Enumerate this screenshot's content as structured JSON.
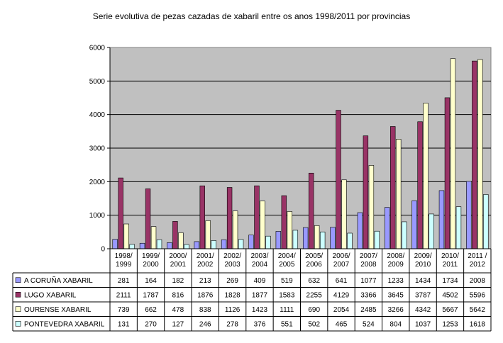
{
  "chart_data": {
    "type": "bar",
    "title": "Serie evolutiva de pezas cazadas de xabaril entre os anos 1998/2011 por provincias",
    "xlabel": "",
    "ylabel": "",
    "ylim": [
      0,
      6000
    ],
    "yticks": [
      0,
      1000,
      2000,
      3000,
      4000,
      5000,
      6000
    ],
    "grid": true,
    "legend": "table-bottom",
    "categories": [
      [
        "1998/",
        "1999"
      ],
      [
        "1999/",
        "2000"
      ],
      [
        "2000/",
        "2001"
      ],
      [
        "2001/",
        "2002"
      ],
      [
        "2002/",
        "2003"
      ],
      [
        "2003/",
        "2004"
      ],
      [
        "2004/",
        "2005"
      ],
      [
        "2005/",
        "2006"
      ],
      [
        "2006/",
        "2007"
      ],
      [
        "2007/",
        "2008"
      ],
      [
        "2008/",
        "2009"
      ],
      [
        "2009/",
        "2010"
      ],
      [
        "2010/",
        "2011"
      ],
      [
        "2011 /",
        "2012"
      ]
    ],
    "series": [
      {
        "name": "A CORUÑA XABARIL",
        "color": "#9999ff",
        "values": [
          281,
          164,
          182,
          213,
          269,
          409,
          519,
          632,
          641,
          1077,
          1233,
          1434,
          1734,
          2008
        ]
      },
      {
        "name": "LUGO XABARIL",
        "color": "#993366",
        "values": [
          2111,
          1787,
          816,
          1876,
          1828,
          1877,
          1583,
          2255,
          4129,
          3366,
          3645,
          3787,
          4502,
          5596
        ]
      },
      {
        "name": "OURENSE XABARIL",
        "color": "#ffffcc",
        "values": [
          739,
          662,
          478,
          838,
          1126,
          1423,
          1111,
          690,
          2054,
          2485,
          3266,
          4342,
          5667,
          5642
        ]
      },
      {
        "name": "PONTEVEDRA XABARIL",
        "color": "#ccffff",
        "values": [
          131,
          270,
          127,
          246,
          278,
          376,
          551,
          502,
          465,
          524,
          804,
          1037,
          1253,
          1618
        ]
      }
    ],
    "plot_bg": "#c0c0c0"
  }
}
